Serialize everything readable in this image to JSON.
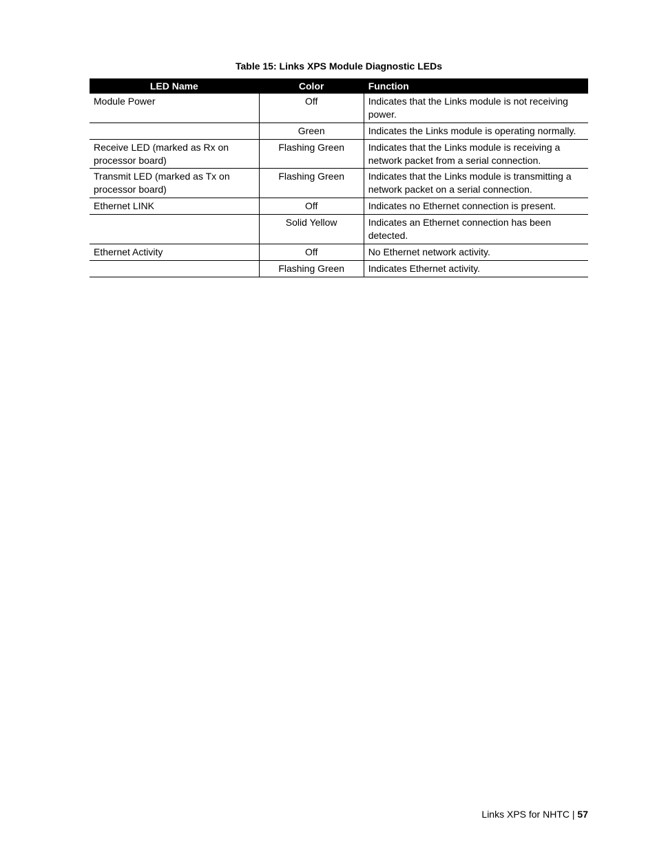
{
  "caption": "Table 15:   Links XPS Module Diagnostic LEDs",
  "columns": [
    "LED Name",
    "Color",
    "Function"
  ],
  "rows": [
    {
      "led": "Module Power",
      "color": "Off",
      "func": "Indicates that the Links module is not receiving power."
    },
    {
      "led": "",
      "color": "Green",
      "func": "Indicates the Links module is operating normally."
    },
    {
      "led": "Receive LED (marked as Rx on processor board)",
      "color": "Flashing Green",
      "func": "Indicates that the Links module is receiving a network packet from a serial connection."
    },
    {
      "led": "Transmit LED (marked as Tx on processor board)",
      "color": "Flashing Green",
      "func": "Indicates that the Links module is transmitting a network packet on a serial connection."
    },
    {
      "led": "Ethernet LINK",
      "color": "Off",
      "func": "Indicates no Ethernet connection is present."
    },
    {
      "led": "",
      "color": "Solid Yellow",
      "func": "Indicates an Ethernet connection has been detected."
    },
    {
      "led": "Ethernet Activity",
      "color": "Off",
      "func": "No Ethernet network activity."
    },
    {
      "led": "",
      "color": "Flashing Green",
      "func": "Indicates Ethernet activity."
    }
  ],
  "footer_text": "Links XPS for NHTC",
  "footer_sep": "   |   ",
  "footer_page": "57",
  "colors": {
    "header_bg": "#000000",
    "header_fg": "#ffffff",
    "border": "#000000",
    "page_bg": "#ffffff",
    "text": "#000000"
  },
  "typography": {
    "caption_fontsize": 14,
    "body_fontsize": 14,
    "caption_weight": "bold"
  },
  "table_layout": {
    "col_widths_pct": [
      34,
      21,
      45
    ],
    "col_align": [
      "left",
      "center",
      "left"
    ]
  }
}
